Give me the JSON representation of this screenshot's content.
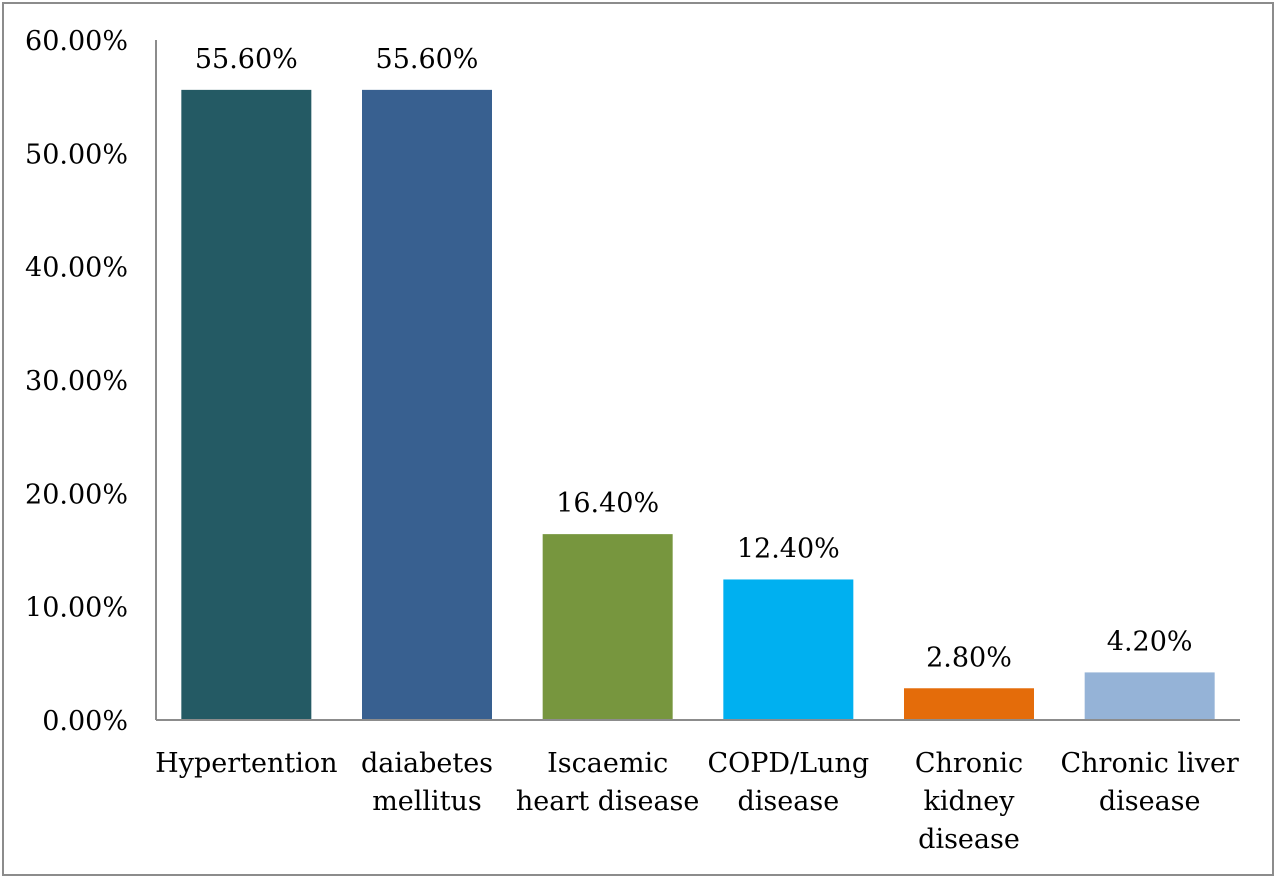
{
  "chart_data": {
    "type": "bar",
    "categories": [
      [
        "Hypertention"
      ],
      [
        "daiabetes",
        "mellitus"
      ],
      [
        "Iscaemic",
        "heart disease"
      ],
      [
        "COPD/Lung",
        "disease"
      ],
      [
        "Chronic",
        "kidney",
        "disease"
      ],
      [
        "Chronic liver",
        "disease"
      ]
    ],
    "values": [
      55.6,
      55.6,
      16.4,
      12.4,
      2.8,
      4.2
    ],
    "data_labels": [
      "55.60%",
      "55.60%",
      "16.40%",
      "12.40%",
      "2.80%",
      "4.20%"
    ],
    "ylim": [
      0,
      60
    ],
    "yticks": [
      0,
      10,
      20,
      30,
      40,
      50,
      60
    ],
    "ytick_labels": [
      "0.00%",
      "10.00%",
      "20.00%",
      "30.00%",
      "40.00%",
      "50.00%",
      "60.00%"
    ],
    "colors": [
      "#245a64",
      "#386090",
      "#77963e",
      "#00b0f0",
      "#e46c0a",
      "#95b3d7"
    ],
    "axis_color": "#8c8c8c",
    "grid": false,
    "legend": "none",
    "title": "",
    "xlabel": "",
    "ylabel": ""
  }
}
